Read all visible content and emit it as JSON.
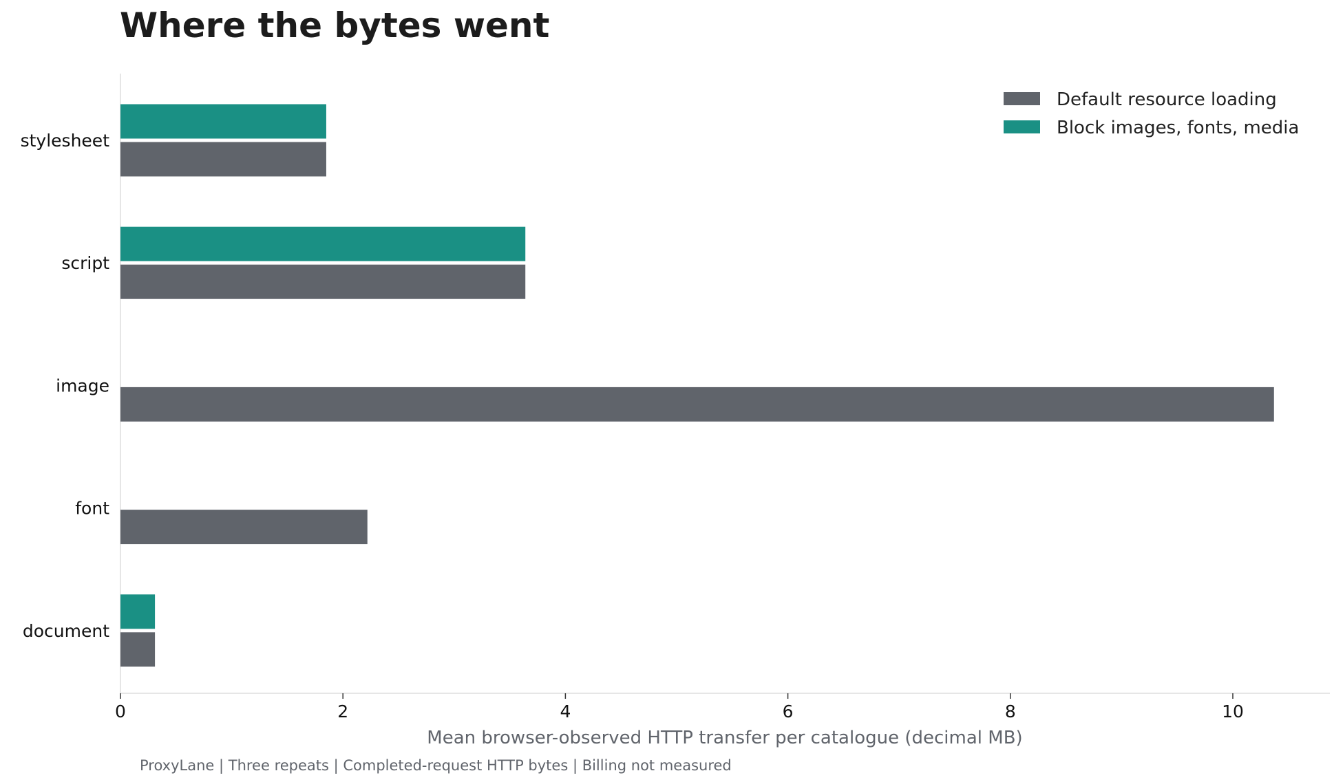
{
  "chart_data": {
    "type": "bar",
    "orientation": "horizontal",
    "title": "Where the bytes went",
    "xlabel": "Mean browser-observed HTTP transfer per catalogue (decimal MB)",
    "ylabel": "",
    "footer": "ProxyLane | Three repeats | Completed-request HTTP bytes | Billing not measured",
    "categories": [
      "stylesheet",
      "script",
      "image",
      "font",
      "document"
    ],
    "xlim": [
      0,
      10.9
    ],
    "xticks": [
      0,
      2,
      4,
      6,
      8,
      10
    ],
    "grid": false,
    "legend_position": "top-right",
    "series": [
      {
        "name": "Default resource loading",
        "color": "#60646b",
        "values": [
          1.85,
          3.64,
          10.37,
          2.22,
          0.31
        ]
      },
      {
        "name": "Block images, fonts, media",
        "color": "#1a9084",
        "values": [
          1.85,
          3.64,
          0,
          0,
          0.31
        ]
      }
    ]
  }
}
